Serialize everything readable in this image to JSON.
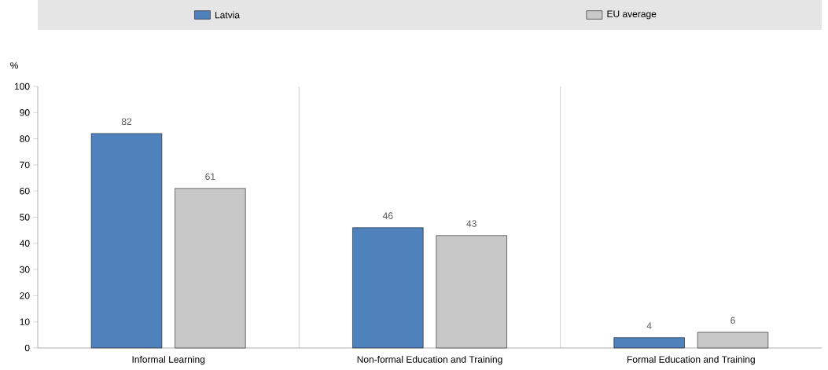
{
  "chart_data": {
    "type": "bar",
    "ylabel": "%",
    "categories": [
      "Informal Learning",
      "Non-formal Education and Training",
      "Formal Education and Training"
    ],
    "series": [
      {
        "name": "Latvia",
        "color": "#4f81bd",
        "values": [
          82,
          46,
          4
        ]
      },
      {
        "name": "EU average",
        "color": "#c8c8c8",
        "values": [
          61,
          43,
          6
        ]
      }
    ],
    "ylim": [
      0,
      100
    ],
    "yticks": [
      0,
      10,
      20,
      30,
      40,
      50,
      60,
      70,
      80,
      90,
      100
    ],
    "data_labels": true,
    "legend": "top"
  }
}
